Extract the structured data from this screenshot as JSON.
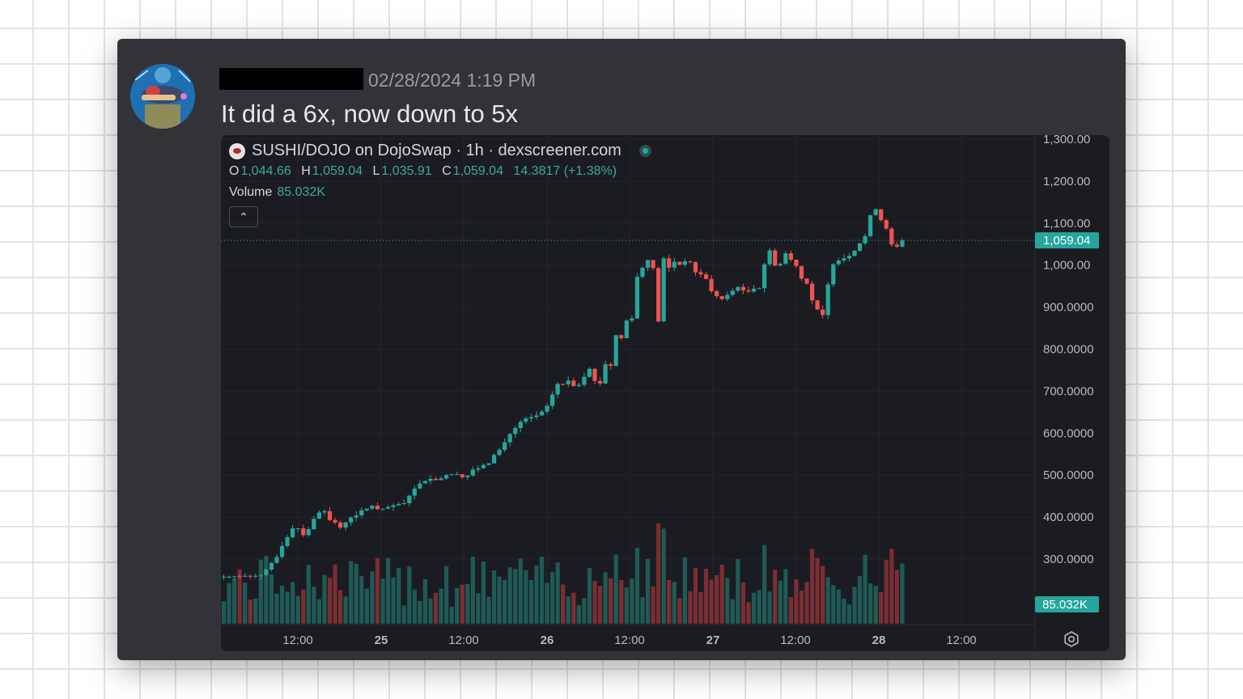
{
  "message": {
    "timestamp": "02/28/2024 1:19 PM",
    "text": "It did a 6x, now down to 5x"
  },
  "chart": {
    "title": "SUSHI/DOJO on DojoSwap · 1h · dexscreener.com",
    "ohlc": {
      "o_label": "O",
      "o": "1,044.66",
      "h_label": "H",
      "h": "1,059.04",
      "l_label": "L",
      "l": "1,035.91",
      "c_label": "C",
      "c": "1,059.04",
      "change": "14.3817 (+1.38%)"
    },
    "volume_label": "Volume",
    "volume_value": "85.032K",
    "price_labels": [
      "1,300.00",
      "1,200.00",
      "1,100.00",
      "1,000.00",
      "900.0000",
      "800.0000",
      "700.0000",
      "600.0000",
      "500.0000",
      "400.0000",
      "300.0000"
    ],
    "last_price": "1,059.04",
    "last_volume": "85.032K",
    "time_labels": [
      "12:00",
      "25",
      "12:00",
      "26",
      "12:00",
      "27",
      "12:00",
      "28",
      "12:00"
    ],
    "colors": {
      "up": "#26a69a",
      "down": "#ef5350",
      "up_vol": "#1f5a55",
      "down_vol": "#7a2e33"
    }
  },
  "chart_data": {
    "type": "candlestick",
    "y_range": [
      1300,
      270
    ],
    "series": [
      {
        "name": "SUSHI/DOJO",
        "close": [
          258,
          258,
          259,
          258,
          260,
          259,
          260,
          262,
          275,
          291,
          305,
          331,
          352,
          373,
          373,
          357,
          371,
          396,
          411,
          414,
          393,
          387,
          375,
          387,
          399,
          404,
          416,
          420,
          427,
          419,
          420,
          424,
          428,
          431,
          433,
          451,
          468,
          480,
          486,
          491,
          488,
          492,
          500,
          502,
          502,
          495,
          499,
          513,
          516,
          524,
          528,
          548,
          560,
          578,
          598,
          612,
          627,
          635,
          638,
          642,
          651,
          665,
          692,
          717,
          716,
          725,
          712,
          715,
          734,
          753,
          724,
          718,
          764,
          760,
          833,
          826,
          868,
          873,
          972,
          994,
          1012,
          993,
          866,
          1016,
          994,
          1008,
          1001,
          1009,
          1007,
          983,
          978,
          967,
          938,
          926,
          919,
          929,
          939,
          948,
          940,
          937,
          944,
          945,
          1002,
          1035,
          999,
          1003,
          1028,
          1013,
          998,
          968,
          956,
          916,
          894,
          881,
          954,
          1002,
          1011,
          1016,
          1022,
          1034,
          1052,
          1069,
          1119,
          1133,
          1107,
          1087,
          1049,
          1044,
          1059
        ]
      }
    ]
  }
}
